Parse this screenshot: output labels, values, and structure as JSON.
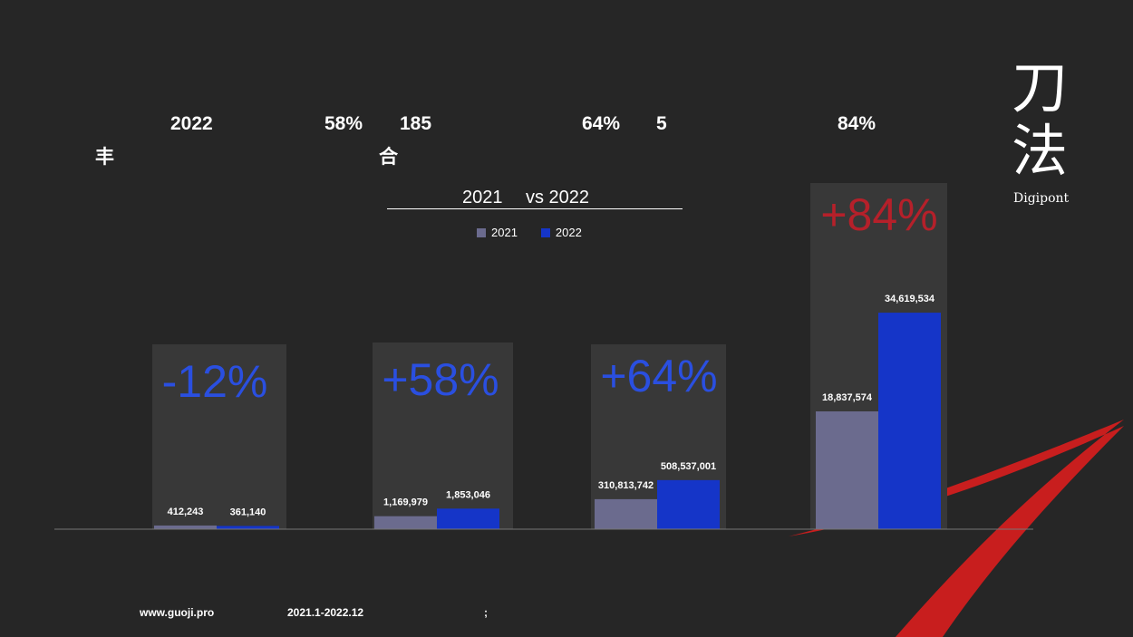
{
  "header": {
    "items": [
      {
        "text": "2022"
      },
      {
        "text": "58%"
      },
      {
        "text": "185"
      },
      {
        "text": "64%"
      },
      {
        "text": "5"
      },
      {
        "text": "84%"
      },
      {
        "text": "丰"
      },
      {
        "text": "合"
      }
    ]
  },
  "logo": {
    "char1": "刀",
    "char2": "法",
    "sub": "Digipont"
  },
  "colors": {
    "series_2021": "#6b6b8e",
    "series_2022": "#1535c8",
    "panel": "#383838",
    "negative_pct": "#2a4fe0",
    "highlight_pct": "#b5202a",
    "accent_red": "#c81e1e"
  },
  "chart_data": {
    "type": "bar",
    "title_left": "2021",
    "title_right": "vs 2022",
    "legend": [
      "2021",
      "2022"
    ],
    "series": [
      {
        "name": "2021",
        "values": [
          412243,
          1169979,
          310813742,
          18837574
        ]
      },
      {
        "name": "2022",
        "values": [
          361140,
          1853046,
          508537001,
          34619534
        ]
      }
    ],
    "value_labels_2021": [
      "412,243",
      "1,169,979",
      "310,813,742",
      "18,837,574"
    ],
    "value_labels_2022": [
      "361,140",
      "1,853,046",
      "508,537,001",
      "34,619,534"
    ],
    "changes": [
      "-12%",
      "+58%",
      "+64%",
      "+84%"
    ],
    "note": "each group drawn on its own independent scale"
  },
  "footer": {
    "website": "www.guoji.pro",
    "period": "2021.1-2022.12",
    "sep": ";"
  }
}
